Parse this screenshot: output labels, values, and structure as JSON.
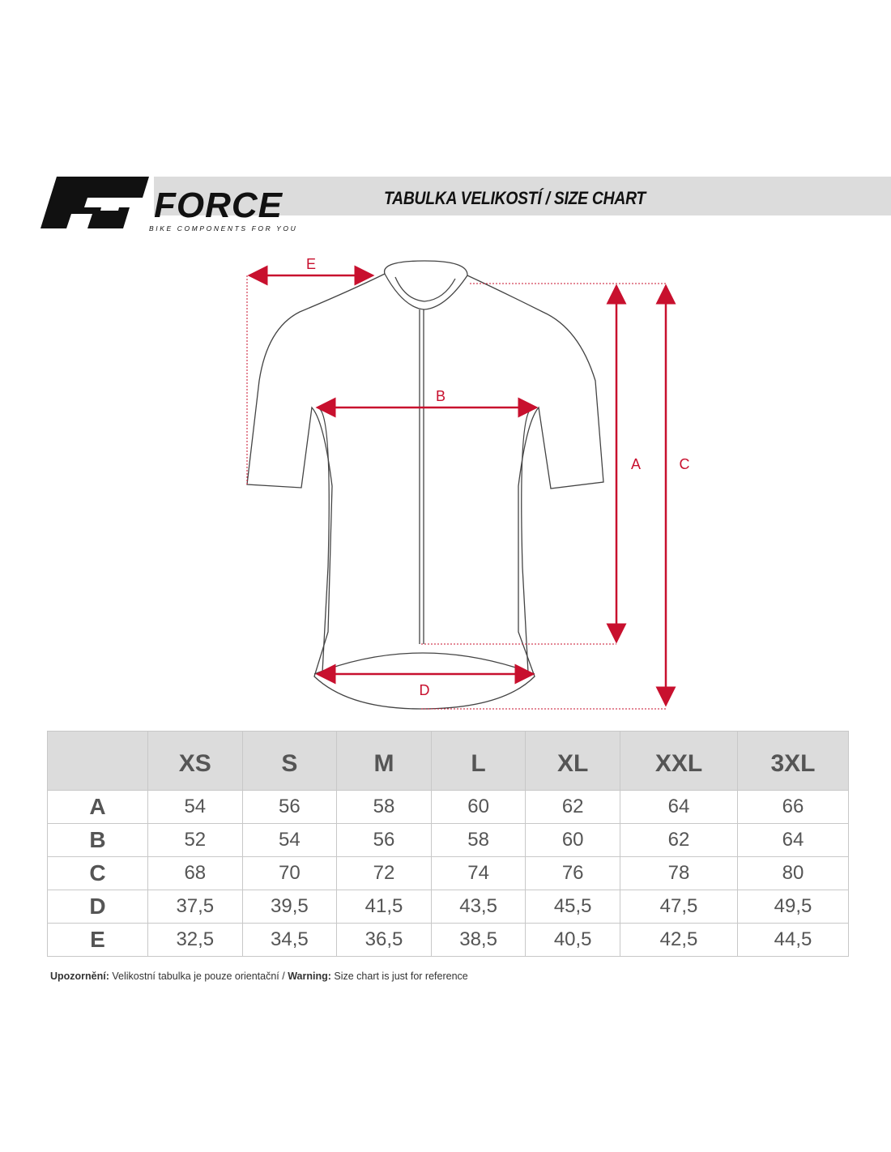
{
  "header": {
    "brand": "FORCE",
    "tagline": "BIKE COMPONENTS FOR YOU",
    "title": "TABULKA VELIKOSTÍ / SIZE CHART"
  },
  "diagram": {
    "labels": {
      "A": "A",
      "B": "B",
      "C": "C",
      "D": "D",
      "E": "E"
    },
    "arrow_color": "#c8102e"
  },
  "table": {
    "columns": [
      "",
      "XS",
      "S",
      "M",
      "L",
      "XL",
      "XXL",
      "3XL"
    ],
    "rows": [
      {
        "label": "A",
        "values": [
          "54",
          "56",
          "58",
          "60",
          "62",
          "64",
          "66"
        ]
      },
      {
        "label": "B",
        "values": [
          "52",
          "54",
          "56",
          "58",
          "60",
          "62",
          "64"
        ]
      },
      {
        "label": "C",
        "values": [
          "68",
          "70",
          "72",
          "74",
          "76",
          "78",
          "80"
        ]
      },
      {
        "label": "D",
        "values": [
          "37,5",
          "39,5",
          "41,5",
          "43,5",
          "45,5",
          "47,5",
          "49,5"
        ]
      },
      {
        "label": "E",
        "values": [
          "32,5",
          "34,5",
          "36,5",
          "38,5",
          "40,5",
          "42,5",
          "44,5"
        ]
      }
    ]
  },
  "note": {
    "cz_label": "Upozornění:",
    "cz_text": " Velikostní tabulka je pouze orientační / ",
    "en_label": "Warning:",
    "en_text": " Size chart is just for reference"
  }
}
